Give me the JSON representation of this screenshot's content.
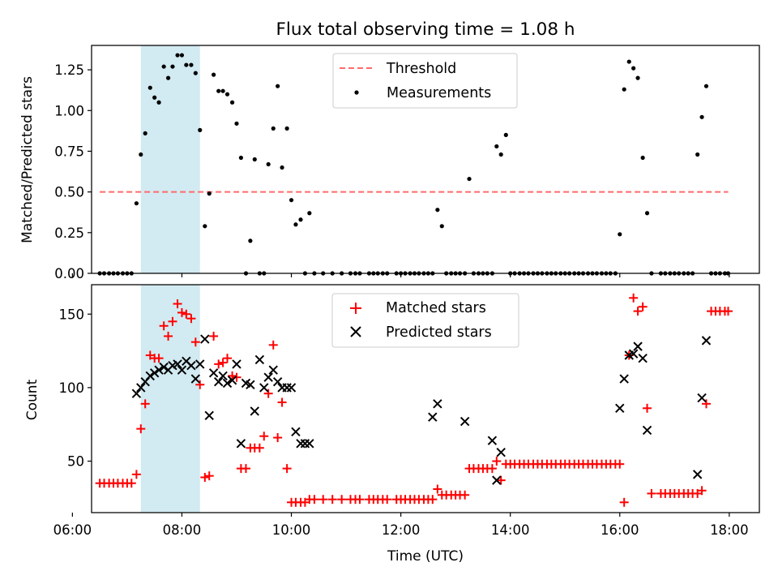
{
  "title": "Flux total observing time = 1.08 h",
  "colors": {
    "threshold": "#ff6b6b",
    "measurement": "#000000",
    "matched": "#ff0000",
    "predicted": "#000000",
    "highlight": "#add8e6"
  },
  "chart_data": [
    {
      "type": "scatter",
      "ylabel": "Matched/Predicted stars",
      "xlim": [
        6.35,
        18.55
      ],
      "ylim": [
        0,
        1.4
      ],
      "yticks": [
        0.0,
        0.25,
        0.5,
        0.75,
        1.0,
        1.25
      ],
      "ytick_labels": [
        "0.00",
        "0.25",
        "0.50",
        "0.75",
        "1.00",
        "1.25"
      ],
      "highlight_span": [
        7.25,
        8.33
      ],
      "legend": {
        "position": "top-center",
        "threshold_label": "Threshold",
        "measurements_label": "Measurements"
      },
      "threshold": {
        "y": 0.5,
        "x": [
          6.5,
          17.98
        ]
      },
      "series": [
        {
          "name": "Measurements",
          "x": [
            6.5,
            6.58,
            6.67,
            6.75,
            6.83,
            6.92,
            7.0,
            7.08,
            7.17,
            7.25,
            7.33,
            7.42,
            7.5,
            7.58,
            7.67,
            7.75,
            7.83,
            7.92,
            8.0,
            8.08,
            8.17,
            8.25,
            8.33,
            8.42,
            8.5,
            8.58,
            8.67,
            8.75,
            8.83,
            8.92,
            9.0,
            9.08,
            9.17,
            9.25,
            9.33,
            9.42,
            9.5,
            9.58,
            9.67,
            9.75,
            9.83,
            9.92,
            10.0,
            10.08,
            10.17,
            10.25,
            10.33,
            10.42,
            10.58,
            10.75,
            10.92,
            11.08,
            11.17,
            11.25,
            11.42,
            11.5,
            11.58,
            11.67,
            11.75,
            11.92,
            12.0,
            12.08,
            12.17,
            12.25,
            12.33,
            12.42,
            12.5,
            12.58,
            12.67,
            12.75,
            12.83,
            12.92,
            13.0,
            13.08,
            13.17,
            13.25,
            13.33,
            13.42,
            13.5,
            13.58,
            13.67,
            13.75,
            13.83,
            13.92,
            14.0,
            14.08,
            14.17,
            14.25,
            14.33,
            14.42,
            14.5,
            14.58,
            14.67,
            14.75,
            14.83,
            14.92,
            15.0,
            15.08,
            15.17,
            15.25,
            15.33,
            15.42,
            15.5,
            15.58,
            15.67,
            15.75,
            15.83,
            15.92,
            16.0,
            16.08,
            16.17,
            16.25,
            16.33,
            16.42,
            16.5,
            16.58,
            16.75,
            16.83,
            16.92,
            17.0,
            17.08,
            17.17,
            17.25,
            17.33,
            17.42,
            17.5,
            17.58,
            17.67,
            17.75,
            17.83,
            17.92,
            17.98
          ],
          "y": [
            0,
            0,
            0,
            0,
            0,
            0,
            0,
            0,
            0.43,
            0.73,
            0.86,
            1.14,
            1.08,
            1.05,
            1.27,
            1.2,
            1.27,
            1.34,
            1.34,
            1.28,
            1.28,
            1.23,
            0.88,
            0.29,
            0.49,
            1.22,
            1.12,
            1.12,
            1.1,
            1.05,
            0.92,
            0.71,
            0.0,
            0.2,
            0.7,
            0.0,
            0.0,
            0.67,
            0.89,
            1.15,
            0.65,
            0.89,
            0.45,
            0.3,
            0.33,
            0.0,
            0.37,
            0.0,
            0.0,
            0.0,
            0.0,
            0.0,
            0.0,
            0.0,
            0.0,
            0.0,
            0.0,
            0.0,
            0.0,
            0.0,
            0.0,
            0.0,
            0.0,
            0.0,
            0.0,
            0.0,
            0.0,
            0.0,
            0.39,
            0.29,
            0.0,
            0.0,
            0.0,
            0.0,
            0.0,
            0.58,
            0.0,
            0.0,
            0.0,
            0.0,
            0.0,
            0.78,
            0.73,
            0.85,
            0.0,
            0.0,
            0.0,
            0.0,
            0.0,
            0.0,
            0.0,
            0.0,
            0.0,
            0.0,
            0.0,
            0.0,
            0.0,
            0.0,
            0.0,
            0.0,
            0.0,
            0.0,
            0.0,
            0.0,
            0.0,
            0.0,
            0.0,
            0.0,
            0.24,
            1.13,
            1.3,
            1.26,
            1.2,
            0.71,
            0.37,
            0.0,
            0.0,
            0.0,
            0.0,
            0.0,
            0.0,
            0.0,
            0.0,
            0.0,
            0.73,
            0.96,
            1.15,
            0.0,
            0.0,
            0.0,
            0.0,
            0.0
          ]
        }
      ]
    },
    {
      "type": "scatter",
      "ylabel": "Count",
      "xlabel": "Time (UTC)",
      "xlim": [
        6.35,
        18.55
      ],
      "ylim": [
        15,
        170
      ],
      "yticks": [
        50,
        100,
        150
      ],
      "ytick_labels": [
        "50",
        "100",
        "150"
      ],
      "xticks": [
        6,
        8,
        10,
        12,
        14,
        16,
        18
      ],
      "xtick_labels": [
        "06:00",
        "08:00",
        "10:00",
        "12:00",
        "14:00",
        "16:00",
        "18:00"
      ],
      "highlight_span": [
        7.25,
        8.33
      ],
      "legend": {
        "position": "top-center"
      },
      "series": [
        {
          "name": "Matched stars",
          "marker": "plus",
          "x": [
            6.5,
            6.58,
            6.67,
            6.75,
            6.83,
            6.92,
            7.0,
            7.08,
            7.17,
            7.25,
            7.33,
            7.42,
            7.5,
            7.58,
            7.67,
            7.75,
            7.83,
            7.92,
            8.0,
            8.08,
            8.17,
            8.25,
            8.33,
            8.42,
            8.5,
            8.58,
            8.67,
            8.75,
            8.83,
            8.92,
            9.0,
            9.08,
            9.17,
            9.25,
            9.33,
            9.42,
            9.5,
            9.58,
            9.67,
            9.75,
            9.83,
            9.92,
            10.0,
            10.08,
            10.17,
            10.25,
            10.33,
            10.42,
            10.58,
            10.75,
            10.92,
            11.08,
            11.17,
            11.25,
            11.42,
            11.5,
            11.58,
            11.67,
            11.75,
            11.92,
            12.0,
            12.08,
            12.17,
            12.25,
            12.33,
            12.42,
            12.5,
            12.58,
            12.67,
            12.75,
            12.83,
            12.92,
            13.0,
            13.08,
            13.17,
            13.25,
            13.33,
            13.42,
            13.5,
            13.58,
            13.67,
            13.75,
            13.83,
            13.92,
            14.0,
            14.08,
            14.17,
            14.25,
            14.33,
            14.42,
            14.5,
            14.58,
            14.67,
            14.75,
            14.83,
            14.92,
            15.0,
            15.08,
            15.17,
            15.25,
            15.33,
            15.42,
            15.5,
            15.58,
            15.67,
            15.75,
            15.83,
            15.92,
            16.0,
            16.08,
            16.17,
            16.25,
            16.33,
            16.42,
            16.5,
            16.58,
            16.75,
            16.83,
            16.92,
            17.0,
            17.08,
            17.17,
            17.25,
            17.33,
            17.42,
            17.5,
            17.58,
            17.67,
            17.75,
            17.83,
            17.92,
            17.98
          ],
          "y": [
            35,
            35,
            35,
            35,
            35,
            35,
            35,
            35,
            41,
            72,
            89,
            122,
            120,
            120,
            142,
            135,
            145,
            157,
            151,
            150,
            147,
            131,
            102,
            39,
            40,
            135,
            116,
            117,
            120,
            108,
            107,
            45,
            45,
            59,
            59,
            59,
            67,
            96,
            129,
            66,
            90,
            45,
            22,
            22,
            22,
            22,
            24,
            24,
            24,
            24,
            24,
            24,
            24,
            24,
            24,
            24,
            24,
            24,
            24,
            24,
            24,
            24,
            24,
            24,
            24,
            24,
            24,
            24,
            31,
            27,
            27,
            27,
            27,
            27,
            27,
            45,
            45,
            45,
            45,
            45,
            45,
            50,
            37,
            48,
            48,
            48,
            48,
            48,
            48,
            48,
            48,
            48,
            48,
            48,
            48,
            48,
            48,
            48,
            48,
            48,
            48,
            48,
            48,
            48,
            48,
            48,
            48,
            48,
            48,
            22,
            122,
            161,
            152,
            155,
            86,
            28,
            28,
            28,
            28,
            28,
            28,
            28,
            28,
            28,
            28,
            30,
            89,
            152,
            152,
            152,
            152,
            152
          ]
        },
        {
          "name": "Predicted stars",
          "marker": "x",
          "x": [
            7.17,
            7.25,
            7.33,
            7.42,
            7.5,
            7.58,
            7.67,
            7.75,
            7.83,
            7.92,
            8.0,
            8.08,
            8.17,
            8.25,
            8.33,
            8.42,
            8.5,
            8.58,
            8.67,
            8.75,
            8.83,
            8.92,
            9.0,
            9.08,
            9.17,
            9.25,
            9.33,
            9.42,
            9.5,
            9.58,
            9.67,
            9.75,
            9.83,
            9.92,
            10.0,
            10.08,
            10.17,
            10.25,
            10.33,
            12.58,
            12.67,
            13.17,
            13.67,
            13.75,
            13.83,
            16.0,
            16.08,
            16.17,
            16.25,
            16.33,
            16.42,
            16.5,
            17.42,
            17.5,
            17.58
          ],
          "y": [
            96,
            100,
            104,
            108,
            110,
            112,
            114,
            112,
            115,
            116,
            112,
            118,
            115,
            106,
            116,
            133,
            81,
            110,
            104,
            108,
            103,
            105,
            116,
            62,
            103,
            102,
            84,
            119,
            100,
            107,
            112,
            104,
            100,
            100,
            100,
            70,
            62,
            62,
            62,
            80,
            89,
            77,
            64,
            37,
            56,
            86,
            106,
            122,
            123,
            128,
            120,
            71,
            41,
            93,
            132
          ]
        }
      ]
    }
  ]
}
